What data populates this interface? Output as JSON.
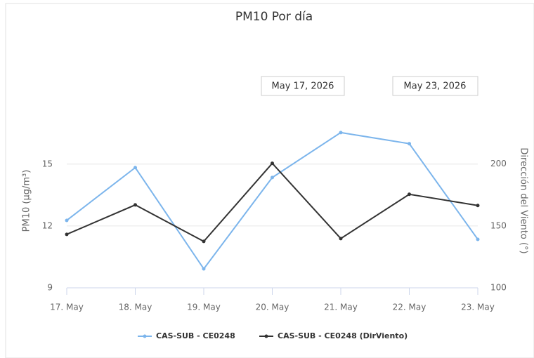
{
  "chart_data": {
    "type": "line",
    "title": "PM10 Por día",
    "range": [
      "May 17, 2026",
      "May 23, 2026"
    ],
    "y_label": "PM10 (µg/m³)",
    "y2_label": "Dirección del Viento (°)",
    "categories": [
      "17. May",
      "18. May",
      "19. May",
      "20. May",
      "21. May",
      "22. May",
      "23. May"
    ],
    "ylim": [
      9,
      17.75
    ],
    "yticks": [
      9,
      12,
      15
    ],
    "y2lim": [
      100,
      245.8
    ],
    "y2ticks": [
      100,
      150,
      200
    ],
    "grid": true,
    "series": [
      {
        "name": "CAS-SUB - CE0248",
        "color": "#7cb5ec",
        "values": [
          12.27,
          14.83,
          9.92,
          14.35,
          16.53,
          15.99,
          11.35
        ]
      },
      {
        "name": "CAS-SUB - CE0248 (DirViento)",
        "color": "#333333",
        "axis": "y2",
        "values": [
          143.2,
          167,
          137.5,
          200.6,
          139.8,
          175.6,
          166.5
        ]
      }
    ]
  }
}
